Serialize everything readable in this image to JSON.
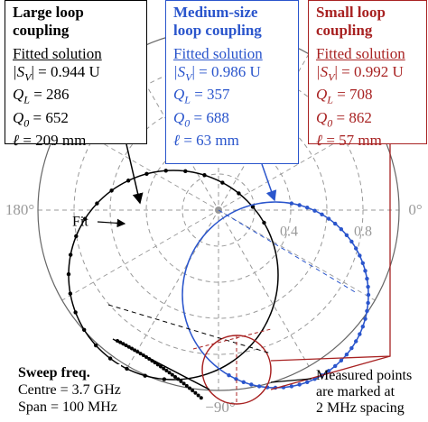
{
  "boxes": [
    {
      "title": [
        "Large loop",
        "coupling"
      ],
      "subtitle": "Fitted solution",
      "params": [
        {
          "symbol": "|S",
          "sub": "V",
          "rest": "| = 0.944 U"
        },
        {
          "symbol": "Q",
          "sub": "L",
          "rest": " = 286"
        },
        {
          "symbol": "Q",
          "sub": "0",
          "rest": " = 652"
        },
        {
          "symbol": "ℓ",
          "sub": "",
          "rest": " = 209 mm"
        }
      ]
    },
    {
      "title": [
        "Medium-size",
        "loop coupling"
      ],
      "subtitle": "Fitted solution",
      "params": [
        {
          "symbol": "|S",
          "sub": "V",
          "rest": "| = 0.986 U"
        },
        {
          "symbol": "Q",
          "sub": "L",
          "rest": " = 357"
        },
        {
          "symbol": "Q",
          "sub": "0",
          "rest": " = 688"
        },
        {
          "symbol": "ℓ",
          "sub": "",
          "rest": " = 63 mm"
        }
      ]
    },
    {
      "title": [
        "Small loop",
        "coupling"
      ],
      "subtitle": "Fitted solution",
      "params": [
        {
          "symbol": "|S",
          "sub": "V",
          "rest": "| = 0.992 U"
        },
        {
          "symbol": "Q",
          "sub": "L",
          "rest": " = 708"
        },
        {
          "symbol": "Q",
          "sub": "0",
          "rest": " = 862"
        },
        {
          "symbol": "ℓ",
          "sub": "",
          "rest": " = 57 mm"
        }
      ]
    }
  ],
  "angle_labels": {
    "left": "180°",
    "right": "0°",
    "bottom": "−90°"
  },
  "radius_labels": [
    "0.4",
    "0.8"
  ],
  "fit_label": "Fit",
  "sweep": {
    "title": "Sweep freq.",
    "lines": [
      "Centre = 3.7 GHz",
      "Span = 100 MHz"
    ]
  },
  "measured_note": [
    "Measured points",
    "are marked at",
    "2 MHz spacing"
  ]
}
